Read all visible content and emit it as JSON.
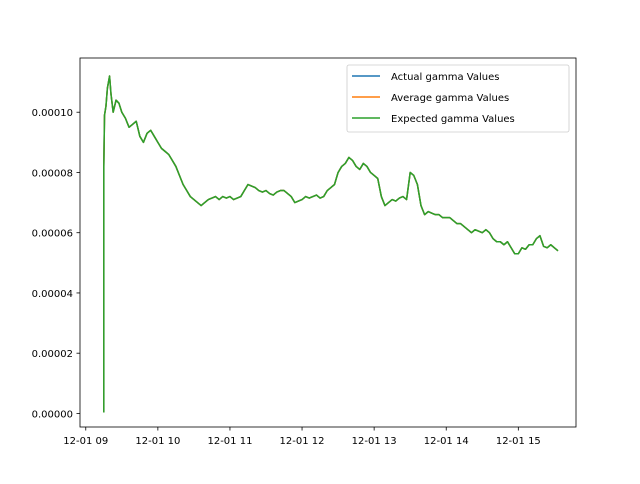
{
  "chart_data": {
    "type": "line",
    "title": "",
    "xlabel": "",
    "ylabel": "",
    "x_ticks": [
      "12-01 09",
      "12-01 10",
      "12-01 11",
      "12-01 12",
      "12-01 13",
      "12-01 14",
      "12-01 15"
    ],
    "xlim_hours": [
      8.92,
      15.8
    ],
    "ylim": [
      -4.5e-06,
      0.000118
    ],
    "y_ticks": [
      "0.00000",
      "0.00002",
      "0.00004",
      "0.00006",
      "0.00008",
      "0.00010"
    ],
    "y_tick_values": [
      0,
      2e-05,
      4e-05,
      6e-05,
      8e-05,
      0.0001
    ],
    "legend_position": "top-right",
    "x": [
      9.25,
      9.25,
      9.26,
      9.28,
      9.3,
      9.33,
      9.35,
      9.38,
      9.42,
      9.46,
      9.5,
      9.55,
      9.6,
      9.65,
      9.7,
      9.75,
      9.8,
      9.85,
      9.9,
      9.95,
      10.0,
      10.05,
      10.1,
      10.15,
      10.2,
      10.25,
      10.3,
      10.35,
      10.4,
      10.45,
      10.5,
      10.55,
      10.6,
      10.65,
      10.7,
      10.75,
      10.8,
      10.85,
      10.9,
      10.95,
      11.0,
      11.05,
      11.1,
      11.15,
      11.2,
      11.25,
      11.3,
      11.35,
      11.4,
      11.45,
      11.5,
      11.55,
      11.6,
      11.65,
      11.7,
      11.75,
      11.8,
      11.85,
      11.9,
      11.95,
      12.0,
      12.05,
      12.1,
      12.15,
      12.2,
      12.25,
      12.3,
      12.35,
      12.4,
      12.45,
      12.5,
      12.55,
      12.6,
      12.65,
      12.7,
      12.75,
      12.8,
      12.85,
      12.9,
      12.95,
      13.0,
      13.05,
      13.1,
      13.15,
      13.2,
      13.25,
      13.3,
      13.35,
      13.4,
      13.45,
      13.5,
      13.55,
      13.6,
      13.65,
      13.7,
      13.75,
      13.8,
      13.85,
      13.9,
      13.95,
      14.0,
      14.05,
      14.1,
      14.15,
      14.2,
      14.25,
      14.3,
      14.35,
      14.4,
      14.45,
      14.5,
      14.55,
      14.6,
      14.65,
      14.7,
      14.75,
      14.8,
      14.85,
      14.9,
      14.95,
      15.0,
      15.05,
      15.1,
      15.15,
      15.2,
      15.25,
      15.3,
      15.35,
      15.4,
      15.45,
      15.5,
      15.55
    ],
    "series": [
      {
        "name": "Actual gamma Values",
        "color": "#1f77b4",
        "values": [
          3e-07,
          8.2e-05,
          9.9e-05,
          0.000102,
          0.000108,
          0.000112,
          0.000106,
          0.0001,
          0.000104,
          0.000103,
          0.0001,
          9.8e-05,
          9.5e-05,
          9.6e-05,
          9.7e-05,
          9.2e-05,
          9e-05,
          9.3e-05,
          9.4e-05,
          9.2e-05,
          9e-05,
          8.8e-05,
          8.7e-05,
          8.6e-05,
          8.4e-05,
          8.2e-05,
          7.9e-05,
          7.6e-05,
          7.4e-05,
          7.2e-05,
          7.1e-05,
          7e-05,
          6.9e-05,
          7e-05,
          7.1e-05,
          7.15e-05,
          7.2e-05,
          7.1e-05,
          7.2e-05,
          7.15e-05,
          7.2e-05,
          7.1e-05,
          7.15e-05,
          7.2e-05,
          7.4e-05,
          7.6e-05,
          7.55e-05,
          7.5e-05,
          7.4e-05,
          7.35e-05,
          7.4e-05,
          7.3e-05,
          7.25e-05,
          7.35e-05,
          7.4e-05,
          7.4e-05,
          7.3e-05,
          7.2e-05,
          7e-05,
          7.05e-05,
          7.1e-05,
          7.2e-05,
          7.15e-05,
          7.2e-05,
          7.25e-05,
          7.15e-05,
          7.2e-05,
          7.4e-05,
          7.5e-05,
          7.6e-05,
          8e-05,
          8.2e-05,
          8.3e-05,
          8.5e-05,
          8.4e-05,
          8.2e-05,
          8.1e-05,
          8.3e-05,
          8.2e-05,
          8e-05,
          7.9e-05,
          7.8e-05,
          7.2e-05,
          6.9e-05,
          7e-05,
          7.1e-05,
          7.05e-05,
          7.15e-05,
          7.2e-05,
          7.1e-05,
          8e-05,
          7.9e-05,
          7.6e-05,
          6.9e-05,
          6.6e-05,
          6.7e-05,
          6.65e-05,
          6.6e-05,
          6.6e-05,
          6.5e-05,
          6.5e-05,
          6.5e-05,
          6.4e-05,
          6.3e-05,
          6.3e-05,
          6.2e-05,
          6.1e-05,
          6e-05,
          6.1e-05,
          6.05e-05,
          6e-05,
          6.1e-05,
          6e-05,
          5.8e-05,
          5.7e-05,
          5.7e-05,
          5.6e-05,
          5.7e-05,
          5.5e-05,
          5.3e-05,
          5.3e-05,
          5.5e-05,
          5.45e-05,
          5.6e-05,
          5.6e-05,
          5.8e-05,
          5.9e-05,
          5.55e-05,
          5.5e-05,
          5.6e-05,
          5.5e-05,
          5.4e-05
        ]
      },
      {
        "name": "Average gamma Values",
        "color": "#ff7f0e",
        "values": [
          3e-07,
          8.2e-05,
          9.9e-05,
          0.000102,
          0.000108,
          0.000112,
          0.000106,
          0.0001,
          0.000104,
          0.000103,
          0.0001,
          9.8e-05,
          9.5e-05,
          9.6e-05,
          9.7e-05,
          9.2e-05,
          9e-05,
          9.3e-05,
          9.4e-05,
          9.2e-05,
          9e-05,
          8.8e-05,
          8.7e-05,
          8.6e-05,
          8.4e-05,
          8.2e-05,
          7.9e-05,
          7.6e-05,
          7.4e-05,
          7.2e-05,
          7.1e-05,
          7e-05,
          6.9e-05,
          7e-05,
          7.1e-05,
          7.15e-05,
          7.2e-05,
          7.1e-05,
          7.2e-05,
          7.15e-05,
          7.2e-05,
          7.1e-05,
          7.15e-05,
          7.2e-05,
          7.4e-05,
          7.6e-05,
          7.55e-05,
          7.5e-05,
          7.4e-05,
          7.35e-05,
          7.4e-05,
          7.3e-05,
          7.25e-05,
          7.35e-05,
          7.4e-05,
          7.4e-05,
          7.3e-05,
          7.2e-05,
          7e-05,
          7.05e-05,
          7.1e-05,
          7.2e-05,
          7.15e-05,
          7.2e-05,
          7.25e-05,
          7.15e-05,
          7.2e-05,
          7.4e-05,
          7.5e-05,
          7.6e-05,
          8e-05,
          8.2e-05,
          8.3e-05,
          8.5e-05,
          8.4e-05,
          8.2e-05,
          8.1e-05,
          8.3e-05,
          8.2e-05,
          8e-05,
          7.9e-05,
          7.8e-05,
          7.2e-05,
          6.9e-05,
          7e-05,
          7.1e-05,
          7.05e-05,
          7.15e-05,
          7.2e-05,
          7.1e-05,
          8e-05,
          7.9e-05,
          7.6e-05,
          6.9e-05,
          6.6e-05,
          6.7e-05,
          6.65e-05,
          6.6e-05,
          6.6e-05,
          6.5e-05,
          6.5e-05,
          6.5e-05,
          6.4e-05,
          6.3e-05,
          6.3e-05,
          6.2e-05,
          6.1e-05,
          6e-05,
          6.1e-05,
          6.05e-05,
          6e-05,
          6.1e-05,
          6e-05,
          5.8e-05,
          5.7e-05,
          5.7e-05,
          5.6e-05,
          5.7e-05,
          5.5e-05,
          5.3e-05,
          5.3e-05,
          5.5e-05,
          5.45e-05,
          5.6e-05,
          5.6e-05,
          5.8e-05,
          5.9e-05,
          5.55e-05,
          5.5e-05,
          5.6e-05,
          5.5e-05,
          5.4e-05
        ]
      },
      {
        "name": "Expected gamma Values",
        "color": "#2ca02c",
        "values": [
          3e-07,
          8.2e-05,
          9.9e-05,
          0.000102,
          0.000108,
          0.000112,
          0.000106,
          0.0001,
          0.000104,
          0.000103,
          0.0001,
          9.8e-05,
          9.5e-05,
          9.6e-05,
          9.7e-05,
          9.2e-05,
          9e-05,
          9.3e-05,
          9.4e-05,
          9.2e-05,
          9e-05,
          8.8e-05,
          8.7e-05,
          8.6e-05,
          8.4e-05,
          8.2e-05,
          7.9e-05,
          7.6e-05,
          7.4e-05,
          7.2e-05,
          7.1e-05,
          7e-05,
          6.9e-05,
          7e-05,
          7.1e-05,
          7.15e-05,
          7.2e-05,
          7.1e-05,
          7.2e-05,
          7.15e-05,
          7.2e-05,
          7.1e-05,
          7.15e-05,
          7.2e-05,
          7.4e-05,
          7.6e-05,
          7.55e-05,
          7.5e-05,
          7.4e-05,
          7.35e-05,
          7.4e-05,
          7.3e-05,
          7.25e-05,
          7.35e-05,
          7.4e-05,
          7.4e-05,
          7.3e-05,
          7.2e-05,
          7e-05,
          7.05e-05,
          7.1e-05,
          7.2e-05,
          7.15e-05,
          7.2e-05,
          7.25e-05,
          7.15e-05,
          7.2e-05,
          7.4e-05,
          7.5e-05,
          7.6e-05,
          8e-05,
          8.2e-05,
          8.3e-05,
          8.5e-05,
          8.4e-05,
          8.2e-05,
          8.1e-05,
          8.3e-05,
          8.2e-05,
          8e-05,
          7.9e-05,
          7.8e-05,
          7.2e-05,
          6.9e-05,
          7e-05,
          7.1e-05,
          7.05e-05,
          7.15e-05,
          7.2e-05,
          7.1e-05,
          8e-05,
          7.9e-05,
          7.6e-05,
          6.9e-05,
          6.6e-05,
          6.7e-05,
          6.65e-05,
          6.6e-05,
          6.6e-05,
          6.5e-05,
          6.5e-05,
          6.5e-05,
          6.4e-05,
          6.3e-05,
          6.3e-05,
          6.2e-05,
          6.1e-05,
          6e-05,
          6.1e-05,
          6.05e-05,
          6e-05,
          6.1e-05,
          6e-05,
          5.8e-05,
          5.7e-05,
          5.7e-05,
          5.6e-05,
          5.7e-05,
          5.5e-05,
          5.3e-05,
          5.3e-05,
          5.5e-05,
          5.45e-05,
          5.6e-05,
          5.6e-05,
          5.8e-05,
          5.9e-05,
          5.55e-05,
          5.5e-05,
          5.6e-05,
          5.5e-05,
          5.4e-05
        ]
      }
    ]
  }
}
